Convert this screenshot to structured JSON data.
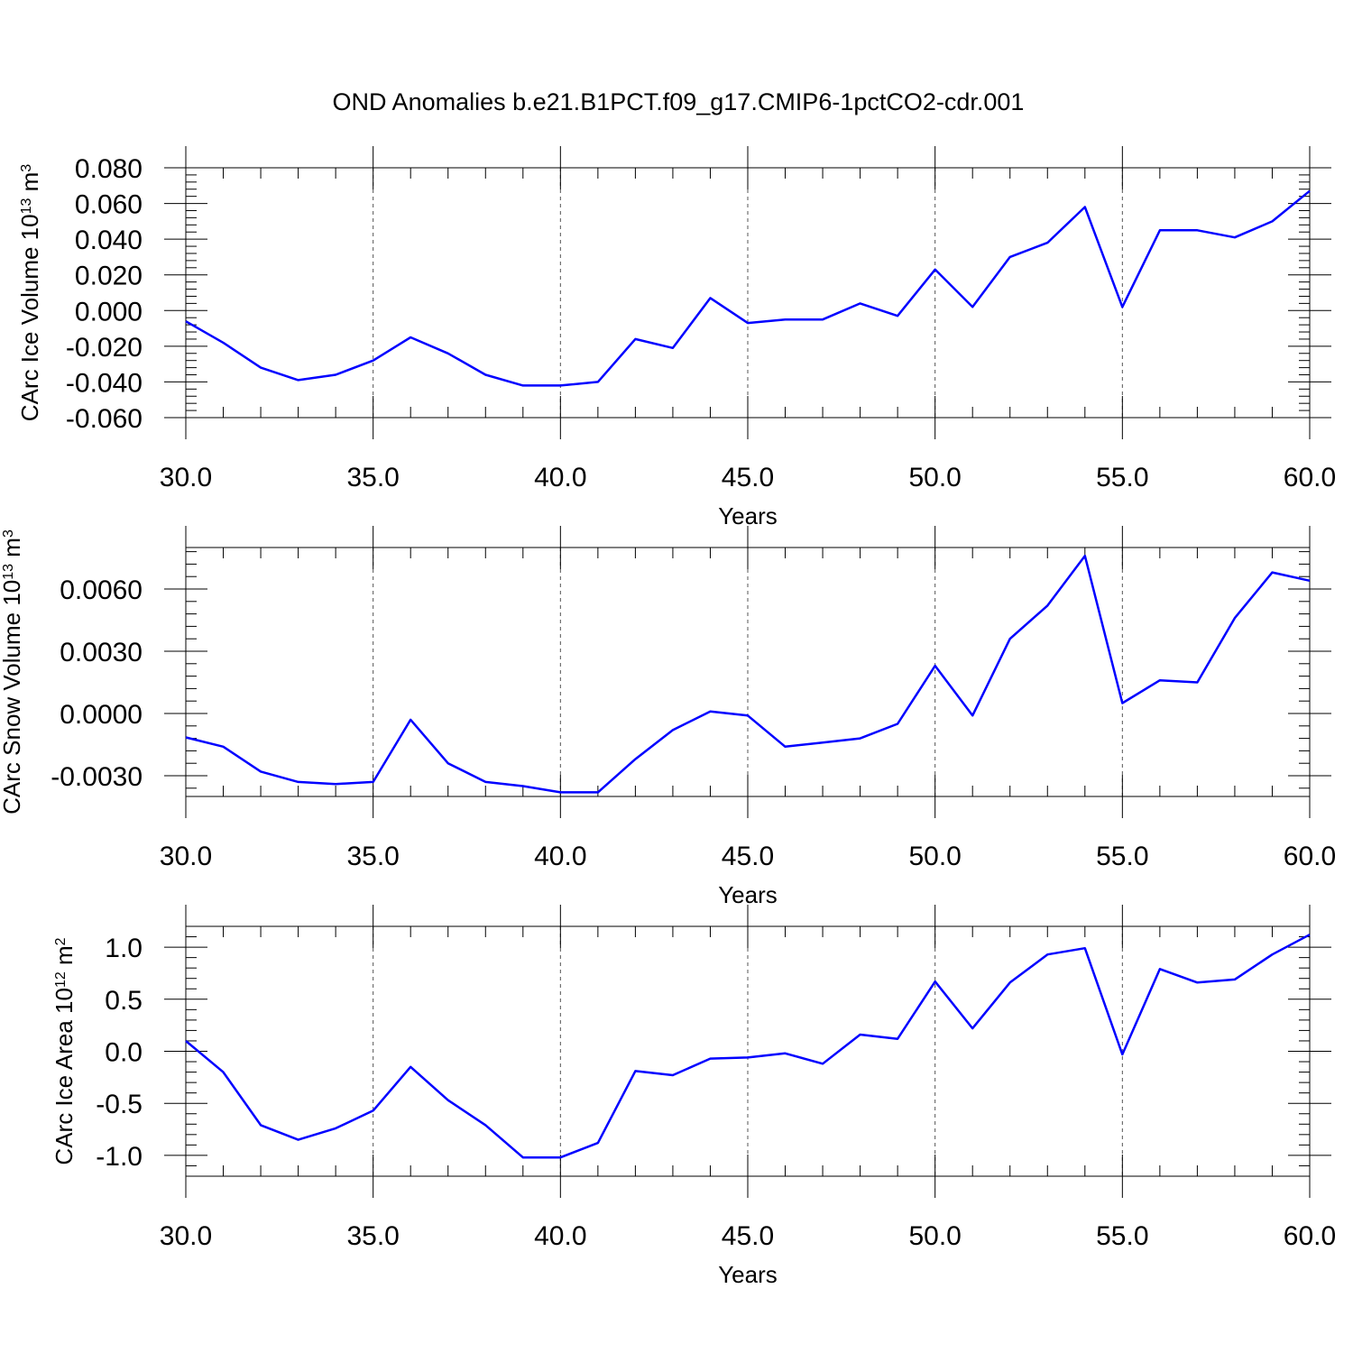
{
  "figure_title": "OND Anomalies b.e21.B1PCT.f09_g17.CMIP6-1pctCO2-cdr.001",
  "series_color": "#0000ff",
  "chart_data": [
    {
      "type": "line",
      "title": "OND Anomalies b.e21.B1PCT.f09_g17.CMIP6-1pctCO2-cdr.001",
      "xlabel": "Years",
      "ylabel": "CArc Ice Volume 10",
      "ylabel_exp": "13",
      "ylabel_unit": " m",
      "ylabel_unit_exp": "3",
      "xlim": [
        30,
        60
      ],
      "ylim": [
        -0.06,
        0.08
      ],
      "x_ticks": [
        30,
        35,
        40,
        45,
        50,
        55,
        60
      ],
      "x_tick_labels": [
        "30.0",
        "35.0",
        "40.0",
        "45.0",
        "50.0",
        "55.0",
        "60.0"
      ],
      "y_ticks": [
        -0.06,
        -0.04,
        -0.02,
        0.0,
        0.02,
        0.04,
        0.06,
        0.08
      ],
      "y_tick_labels": [
        "-0.060",
        "-0.040",
        "-0.020",
        "0.000",
        "0.020",
        "0.040",
        "0.060",
        "0.080"
      ],
      "grid": "vertical dashed",
      "x": [
        30,
        31,
        32,
        33,
        34,
        35,
        36,
        37,
        38,
        39,
        40,
        41,
        42,
        43,
        44,
        45,
        46,
        47,
        48,
        49,
        50,
        51,
        52,
        53,
        54,
        55,
        56,
        57,
        58,
        59,
        60
      ],
      "values": [
        -0.006,
        -0.018,
        -0.032,
        -0.039,
        -0.036,
        -0.028,
        -0.015,
        -0.024,
        -0.036,
        -0.042,
        -0.042,
        -0.04,
        -0.016,
        -0.021,
        0.007,
        -0.007,
        -0.005,
        -0.005,
        0.004,
        -0.003,
        0.023,
        0.002,
        0.03,
        0.038,
        0.058,
        0.002,
        0.045,
        0.045,
        0.041,
        0.05,
        0.067
      ]
    },
    {
      "type": "line",
      "xlabel": "Years",
      "ylabel": "CArc Snow Volume 10",
      "ylabel_exp": "13",
      "ylabel_unit": " m",
      "ylabel_unit_exp": "3",
      "xlim": [
        30,
        60
      ],
      "ylim": [
        -0.004,
        0.008
      ],
      "x_ticks": [
        30,
        35,
        40,
        45,
        50,
        55,
        60
      ],
      "x_tick_labels": [
        "30.0",
        "35.0",
        "40.0",
        "45.0",
        "50.0",
        "55.0",
        "60.0"
      ],
      "y_ticks": [
        -0.003,
        0.0,
        0.003,
        0.006
      ],
      "y_tick_labels": [
        "-0.0030",
        "0.0000",
        "0.0030",
        "0.0060"
      ],
      "grid": "vertical dashed",
      "x": [
        30,
        31,
        32,
        33,
        34,
        35,
        36,
        37,
        38,
        39,
        40,
        41,
        42,
        43,
        44,
        45,
        46,
        47,
        48,
        49,
        50,
        51,
        52,
        53,
        54,
        55,
        56,
        57,
        58,
        59,
        60
      ],
      "values": [
        -0.00115,
        -0.0016,
        -0.0028,
        -0.0033,
        -0.0034,
        -0.0033,
        -0.0003,
        -0.0024,
        -0.0033,
        -0.0035,
        -0.0038,
        -0.0038,
        -0.0022,
        -0.0008,
        0.0001,
        -0.0001,
        -0.0016,
        -0.0014,
        -0.0012,
        -0.0005,
        0.0023,
        -0.0001,
        0.0036,
        0.0052,
        0.0076,
        0.0005,
        0.0016,
        0.0015,
        0.0046,
        0.0068,
        0.0064
      ]
    },
    {
      "type": "line",
      "xlabel": "Years",
      "ylabel": "CArc Ice Area 10",
      "ylabel_exp": "12",
      "ylabel_unit": " m",
      "ylabel_unit_exp": "2",
      "xlim": [
        30,
        60
      ],
      "ylim": [
        -1.2,
        1.2
      ],
      "x_ticks": [
        30,
        35,
        40,
        45,
        50,
        55,
        60
      ],
      "x_tick_labels": [
        "30.0",
        "35.0",
        "40.0",
        "45.0",
        "50.0",
        "55.0",
        "60.0"
      ],
      "y_ticks": [
        -1.0,
        -0.5,
        0.0,
        0.5,
        1.0
      ],
      "y_tick_labels": [
        "-1.0",
        "-0.5",
        "0.0",
        "0.5",
        "1.0"
      ],
      "grid": "vertical dashed",
      "x": [
        30,
        31,
        32,
        33,
        34,
        35,
        36,
        37,
        38,
        39,
        40,
        41,
        42,
        43,
        44,
        45,
        46,
        47,
        48,
        49,
        50,
        51,
        52,
        53,
        54,
        55,
        56,
        57,
        58,
        59,
        60
      ],
      "values": [
        0.1,
        -0.2,
        -0.71,
        -0.85,
        -0.74,
        -0.57,
        -0.15,
        -0.47,
        -0.71,
        -1.02,
        -1.02,
        -0.88,
        -0.19,
        -0.23,
        -0.07,
        -0.06,
        -0.02,
        -0.12,
        0.16,
        0.12,
        0.67,
        0.22,
        0.66,
        0.93,
        0.99,
        -0.03,
        0.79,
        0.66,
        0.69,
        0.93,
        1.12
      ]
    }
  ]
}
